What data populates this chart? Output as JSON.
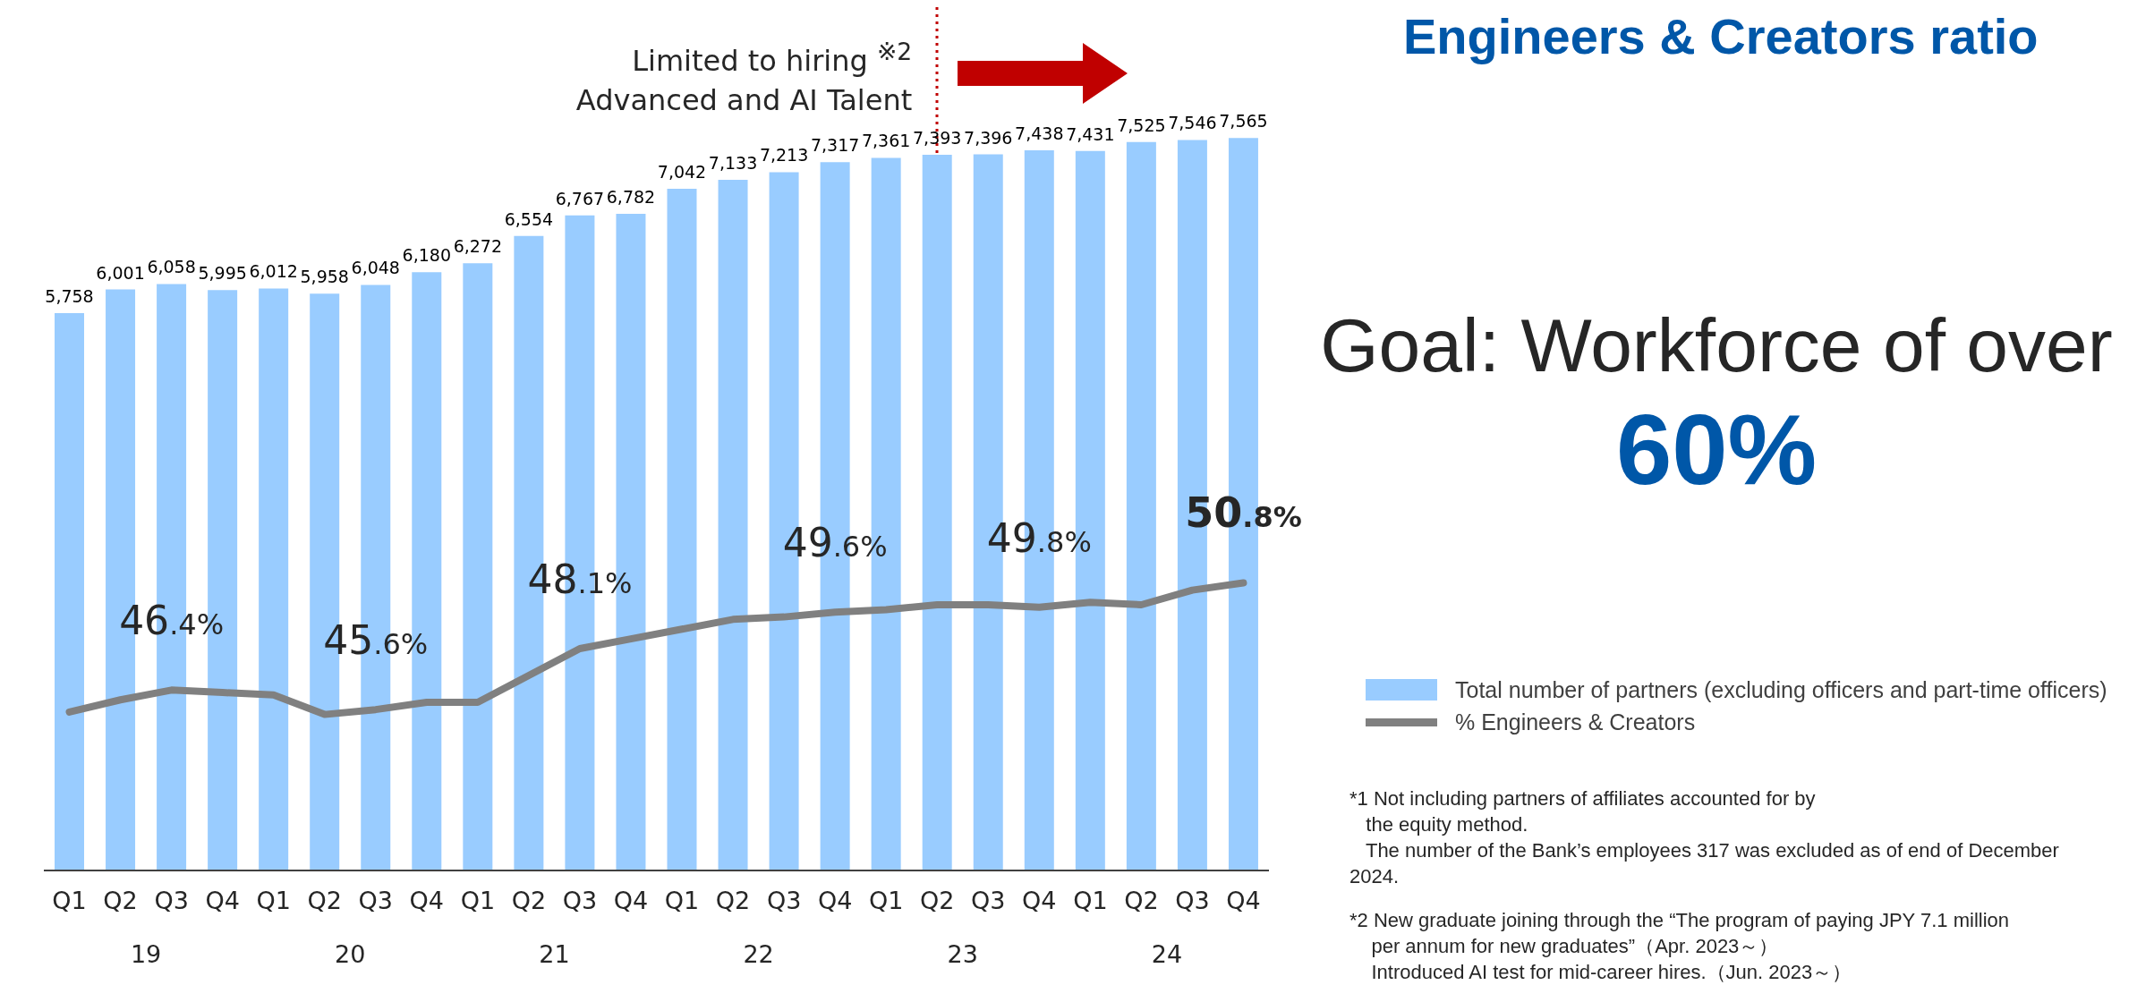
{
  "chart_data": {
    "type": "bar",
    "title": "Engineers & Creators ratio",
    "categories": [
      "Q1",
      "Q2",
      "Q3",
      "Q4",
      "Q1",
      "Q2",
      "Q3",
      "Q4",
      "Q1",
      "Q2",
      "Q3",
      "Q4",
      "Q1",
      "Q2",
      "Q3",
      "Q4",
      "Q1",
      "Q2",
      "Q3",
      "Q4",
      "Q1",
      "Q2",
      "Q3",
      "Q4"
    ],
    "series": [
      {
        "name": "Total number of partners (excluding officers and part-time officers)",
        "color": "#99ccff",
        "values": [
          5758,
          6001,
          6058,
          5995,
          6012,
          5958,
          6048,
          6180,
          6272,
          6554,
          6767,
          6782,
          7042,
          7133,
          7213,
          7317,
          7361,
          7393,
          7396,
          7438,
          7431,
          7525,
          7546,
          7565
        ],
        "value_labels": [
          "5,758",
          "6,001",
          "6,058",
          "5,995",
          "6,012",
          "5,958",
          "6,048",
          "6,180",
          "6,272",
          "6,554",
          "6,767",
          "6,782",
          "7,042",
          "7,133",
          "7,213",
          "7,317",
          "7,361",
          "7,393",
          "7,396",
          "7,438",
          "7,431",
          "7,525",
          "7,546",
          "7,565"
        ]
      },
      {
        "name": "% Engineers & Creators",
        "type": "line",
        "axis": "y2",
        "color": "#808080",
        "values": [
          45.5,
          46.0,
          46.4,
          46.3,
          46.2,
          45.4,
          45.6,
          45.9,
          45.9,
          47.0,
          48.1,
          48.5,
          48.9,
          49.3,
          49.4,
          49.6,
          49.7,
          49.9,
          49.9,
          49.8,
          50.0,
          49.9,
          50.5,
          50.8
        ],
        "value_labels": [
          null,
          null,
          "46.4%",
          null,
          null,
          null,
          "45.6%",
          null,
          null,
          null,
          "48.1%",
          null,
          null,
          null,
          null,
          "49.6%",
          null,
          null,
          null,
          "49.8%",
          null,
          null,
          null,
          "50.8%"
        ]
      }
    ],
    "tick_labels": "x",
    "legend": "right",
    "marker": "none",
    "line_style": "solid",
    "annotations": [
      "19",
      "20",
      "21",
      "22",
      "23",
      "24",
      "Goal: Workforce of over",
      "60%",
      "Limited to hiring $^{※2}$\nAdvanced and AI Talent",
      "*1 Not including partners of affiliates accounted for by\n   the equity method.\n   The number of the Bank’s employees 317 was excluded as of end of December\n2024.",
      "*2 New graduate joining through the “The program of paying JPY 7.1 million\n    per annum for new graduates”（Apr. 2023～）\n    Introduced AI test for mid-career hires.（Jun. 2023～）"
    ]
  }
}
